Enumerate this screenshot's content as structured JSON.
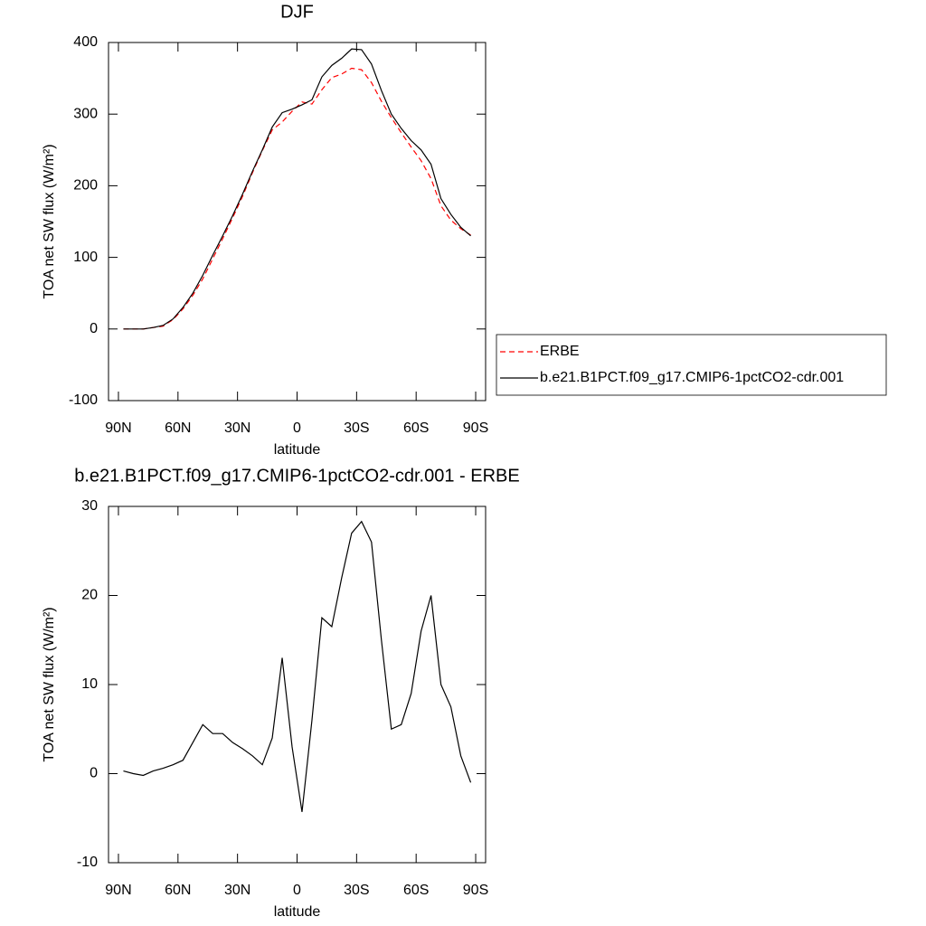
{
  "chart_data": [
    {
      "type": "line",
      "title": "DJF",
      "x_label": "latitude",
      "y_label": "TOA net SW flux (W/m²)",
      "x": [
        87.5,
        82.5,
        77.5,
        72.5,
        67.5,
        62.5,
        57.5,
        52.5,
        47.5,
        42.5,
        37.5,
        32.5,
        27.5,
        22.5,
        17.5,
        12.5,
        7.5,
        2.5,
        -2.5,
        -7.5,
        -12.5,
        -17.5,
        -22.5,
        -27.5,
        -32.5,
        -37.5,
        -42.5,
        -47.5,
        -52.5,
        -57.5,
        -62.5,
        -67.5,
        -72.5,
        -77.5,
        -82.5,
        -87.5
      ],
      "series": [
        {
          "name": "ERBE",
          "color": "#ff0000",
          "dashed": true,
          "values": [
            0,
            0,
            0,
            2,
            4,
            13,
            28,
            47,
            70,
            98,
            126,
            155,
            185,
            218,
            249,
            278,
            289,
            304,
            317,
            314,
            334,
            351,
            356,
            364,
            362,
            344,
            318,
            295,
            274,
            254,
            235,
            210,
            172,
            152,
            140,
            131
          ]
        },
        {
          "name": "b.e21.B1PCT.f09_g17.CMIP6-1pctCO2-cdr.001",
          "color": "#000000",
          "dashed": false,
          "values": [
            0,
            0,
            0,
            2,
            5,
            14,
            30,
            50,
            75,
            103,
            130,
            158,
            188,
            220,
            250,
            282,
            302,
            307,
            313,
            320,
            352,
            368,
            378,
            391,
            390,
            370,
            333,
            300,
            280,
            263,
            250,
            230,
            182,
            160,
            142,
            130
          ]
        }
      ],
      "xlim": [
        95,
        -95
      ],
      "xticks": [
        {
          "value": 90,
          "label": "90N"
        },
        {
          "value": 60,
          "label": "60N"
        },
        {
          "value": 30,
          "label": "30N"
        },
        0,
        {
          "value": -30,
          "label": "30S"
        },
        {
          "value": -60,
          "label": "60S"
        },
        {
          "value": -90,
          "label": "90S"
        }
      ],
      "ylim": [
        -100,
        400
      ],
      "yticks": [
        -100,
        0,
        100,
        200,
        300,
        400
      ],
      "legend": "right"
    },
    {
      "type": "line",
      "title": "b.e21.B1PCT.f09_g17.CMIP6-1pctCO2-cdr.001 - ERBE",
      "x_label": "latitude",
      "y_label": "TOA net SW flux (W/m²)",
      "x": [
        87.5,
        82.5,
        77.5,
        72.5,
        67.5,
        62.5,
        57.5,
        52.5,
        47.5,
        42.5,
        37.5,
        32.5,
        27.5,
        22.5,
        17.5,
        12.5,
        7.5,
        2.5,
        -2.5,
        -7.5,
        -12.5,
        -17.5,
        -22.5,
        -27.5,
        -32.5,
        -37.5,
        -42.5,
        -47.5,
        -52.5,
        -57.5,
        -62.5,
        -67.5,
        -72.5,
        -77.5,
        -82.5,
        -87.5
      ],
      "series": [
        {
          "color": "#000000",
          "values": [
            0.3,
            0,
            -0.2,
            0.3,
            0.6,
            1.0,
            1.5,
            3.5,
            5.5,
            4.5,
            4.5,
            3.5,
            2.8,
            2.0,
            1.0,
            4.0,
            13.0,
            3.0,
            -4.3,
            6.0,
            17.5,
            16.5,
            22.0,
            27.0,
            28.3,
            26.0,
            15.0,
            5.0,
            5.5,
            9.0,
            16.0,
            20.0,
            10.0,
            7.5,
            2.0,
            -1.0
          ]
        }
      ],
      "xlim": [
        95,
        -95
      ],
      "xticks": [
        {
          "value": 90,
          "label": "90N"
        },
        {
          "value": 60,
          "label": "60N"
        },
        {
          "value": 30,
          "label": "30N"
        },
        0,
        {
          "value": -30,
          "label": "30S"
        },
        {
          "value": -60,
          "label": "60S"
        },
        {
          "value": -90,
          "label": "90S"
        }
      ],
      "ylim": [
        -10,
        30
      ],
      "yticks": [
        -10,
        0,
        10,
        20,
        30
      ]
    }
  ]
}
